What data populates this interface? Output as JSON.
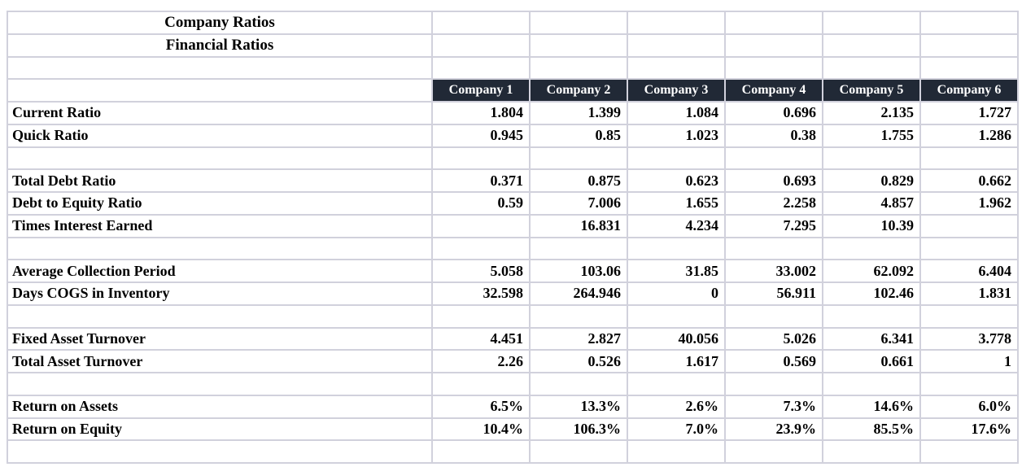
{
  "table": {
    "title_rows": [
      "Company Ratios",
      "Financial Ratios"
    ],
    "columns": [
      "Company 1",
      "Company 2",
      "Company 3",
      "Company 4",
      "Company 5",
      "Company 6"
    ],
    "sections": [
      {
        "rows": [
          {
            "label": "Current Ratio",
            "values": [
              "1.804",
              "1.399",
              "1.084",
              "0.696",
              "2.135",
              "1.727"
            ]
          },
          {
            "label": "Quick Ratio",
            "values": [
              "0.945",
              "0.85",
              "1.023",
              "0.38",
              "1.755",
              "1.286"
            ]
          }
        ]
      },
      {
        "rows": [
          {
            "label": "Total Debt Ratio",
            "values": [
              "0.371",
              "0.875",
              "0.623",
              "0.693",
              "0.829",
              "0.662"
            ]
          },
          {
            "label": "Debt to Equity Ratio",
            "values": [
              "0.59",
              "7.006",
              "1.655",
              "2.258",
              "4.857",
              "1.962"
            ]
          },
          {
            "label": "Times Interest Earned",
            "values": [
              "",
              "16.831",
              "4.234",
              "7.295",
              "10.39",
              ""
            ]
          }
        ]
      },
      {
        "rows": [
          {
            "label": "Average Collection Period",
            "values": [
              "5.058",
              "103.06",
              "31.85",
              "33.002",
              "62.092",
              "6.404"
            ]
          },
          {
            "label": "Days COGS in Inventory",
            "values": [
              "32.598",
              "264.946",
              "0",
              "56.911",
              "102.46",
              "1.831"
            ]
          }
        ]
      },
      {
        "rows": [
          {
            "label": "Fixed Asset Turnover",
            "values": [
              "4.451",
              "2.827",
              "40.056",
              "5.026",
              "6.341",
              "3.778"
            ]
          },
          {
            "label": "Total Asset Turnover",
            "values": [
              "2.26",
              "0.526",
              "1.617",
              "0.569",
              "0.661",
              "1"
            ]
          }
        ]
      },
      {
        "rows": [
          {
            "label": "Return on Assets",
            "values": [
              "6.5%",
              "13.3%",
              "2.6%",
              "7.3%",
              "14.6%",
              "6.0%"
            ]
          },
          {
            "label": "Return on Equity",
            "values": [
              "10.4%",
              "106.3%",
              "7.0%",
              "23.9%",
              "85.5%",
              "17.6%"
            ]
          }
        ]
      }
    ],
    "colors": {
      "header_bg": "#212936",
      "header_text": "#ffffff",
      "grid_line": "#d1d1dc",
      "body_text": "#000000",
      "background": "#ffffff"
    }
  }
}
